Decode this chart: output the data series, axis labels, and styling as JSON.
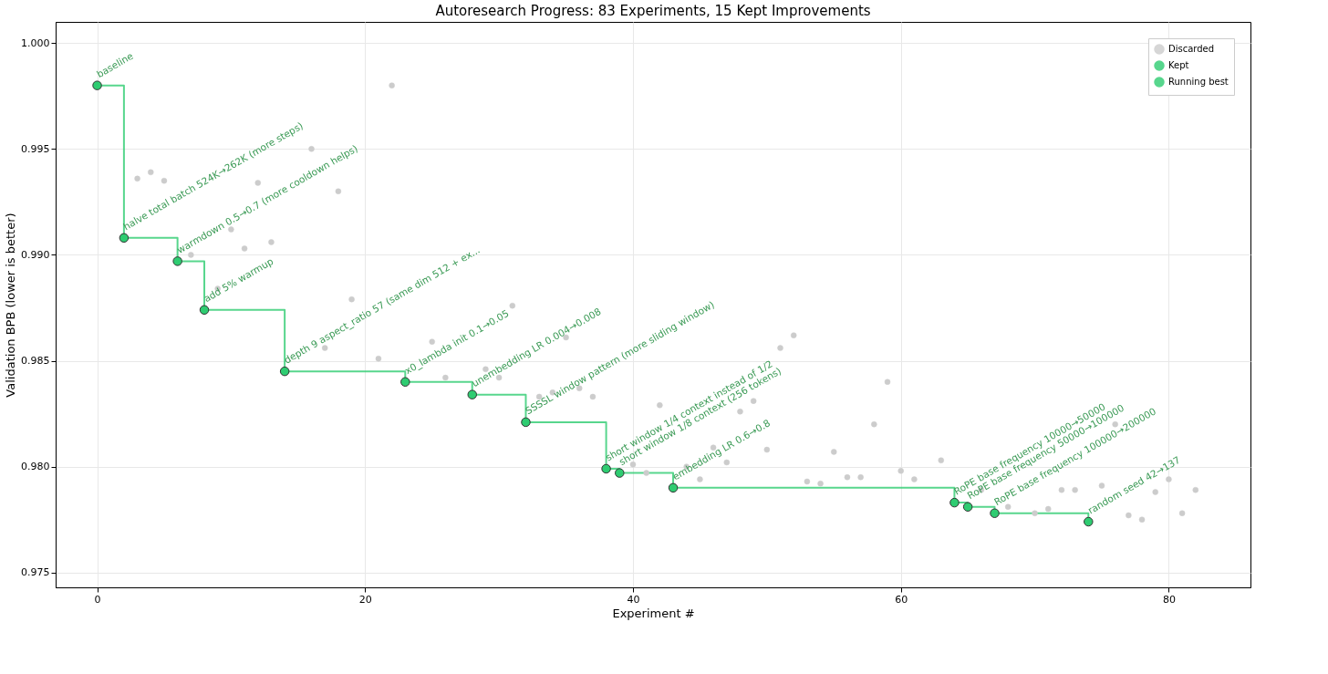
{
  "chart_data": {
    "type": "scatter",
    "title": "Autoresearch Progress: 83 Experiments, 15 Kept Improvements",
    "xlabel": "Experiment #",
    "ylabel": "Validation BPB (lower is better)",
    "xlim": [
      -3.1,
      86.1
    ],
    "xticks": [
      0,
      20,
      40,
      60,
      80
    ],
    "ylim": [
      0.9743,
      1.001
    ],
    "yticks": [
      {
        "value": 0.975,
        "label": "0.975"
      },
      {
        "value": 0.98,
        "label": "0.980"
      },
      {
        "value": 0.985,
        "label": "0.985"
      },
      {
        "value": 0.99,
        "label": "0.990"
      },
      {
        "value": 0.995,
        "label": "0.995"
      },
      {
        "value": 1.0,
        "label": "1.000"
      }
    ],
    "grid": true,
    "legend": "top right",
    "series": [
      {
        "name": "Discarded",
        "marker": "circle",
        "color": "#cccccc",
        "x": [
          3,
          4,
          5,
          7,
          9,
          10,
          11,
          12,
          13,
          16,
          17,
          18,
          19,
          21,
          22,
          25,
          26,
          29,
          30,
          31,
          33,
          34,
          35,
          36,
          37,
          40,
          41,
          42,
          44,
          45,
          46,
          47,
          48,
          49,
          50,
          51,
          52,
          53,
          54,
          55,
          56,
          57,
          58,
          59,
          60,
          61,
          63,
          66,
          68,
          70,
          71,
          72,
          73,
          75,
          76,
          77,
          78,
          79,
          80,
          81,
          82
        ],
        "values": [
          0.9936,
          0.9939,
          0.9935,
          0.99,
          0.9884,
          0.9912,
          0.9903,
          0.9934,
          0.9906,
          0.995,
          0.9856,
          0.993,
          0.9879,
          0.9851,
          0.998,
          0.9859,
          0.9842,
          0.9846,
          0.9842,
          0.9876,
          0.9833,
          0.9835,
          0.9861,
          0.9837,
          0.9833,
          0.9801,
          0.9797,
          0.9829,
          0.98,
          0.9794,
          0.9809,
          0.9802,
          0.9826,
          0.9831,
          0.9808,
          0.9856,
          0.9862,
          0.9793,
          0.9792,
          0.9807,
          0.9795,
          0.9795,
          0.982,
          0.984,
          0.9798,
          0.9794,
          0.9803,
          0.9789,
          0.9781,
          0.9778,
          0.978,
          0.9789,
          0.9789,
          0.9791,
          0.982,
          0.9777,
          0.9775,
          0.9788,
          0.9794,
          0.9778,
          0.9789
        ]
      },
      {
        "name": "Kept",
        "marker": "circle",
        "color": "#2ecc71",
        "x": [
          0,
          2,
          6,
          8,
          14,
          23,
          28,
          32,
          38,
          39,
          43,
          64,
          65,
          67,
          74
        ],
        "values": [
          0.998,
          0.9908,
          0.9897,
          0.9874,
          0.9845,
          0.984,
          0.9834,
          0.9821,
          0.9799,
          0.9797,
          0.979,
          0.9783,
          0.9781,
          0.9778,
          0.9774
        ]
      },
      {
        "name": "Running best",
        "type": "step",
        "color": "#2ecc71",
        "x": [
          0,
          2,
          6,
          8,
          14,
          23,
          28,
          32,
          38,
          39,
          43,
          64,
          65,
          67,
          74
        ],
        "values": [
          0.998,
          0.9908,
          0.9897,
          0.9874,
          0.9845,
          0.984,
          0.9834,
          0.9821,
          0.9799,
          0.9797,
          0.979,
          0.9783,
          0.9781,
          0.9778,
          0.9774
        ]
      }
    ],
    "annotations": [
      {
        "text": "baseline",
        "x": 0,
        "y": 0.998
      },
      {
        "text": "halve total batch 524K→262K (more steps)",
        "x": 2,
        "y": 0.9908
      },
      {
        "text": "warmdown 0.5→0.7 (more cooldown helps)",
        "x": 6,
        "y": 0.9897
      },
      {
        "text": "add 5% warmup",
        "x": 8,
        "y": 0.9874
      },
      {
        "text": "depth 9 aspect_ratio 57 (same dim 512 + ex...",
        "x": 14,
        "y": 0.9845
      },
      {
        "text": "x0_lambda init 0.1→0.05",
        "x": 23,
        "y": 0.984
      },
      {
        "text": "unembedding LR 0.004→0.008",
        "x": 28,
        "y": 0.9834
      },
      {
        "text": "SSSSL window pattern (more sliding window)",
        "x": 32,
        "y": 0.9821
      },
      {
        "text": "short window 1/4 context instead of 1/2",
        "x": 38,
        "y": 0.9799
      },
      {
        "text": "short window 1/8 context (256 tokens)",
        "x": 39,
        "y": 0.9797
      },
      {
        "text": "embedding LR 0.6→0.8",
        "x": 43,
        "y": 0.979
      },
      {
        "text": "RoPE base frequency 10000→50000",
        "x": 64,
        "y": 0.9783
      },
      {
        "text": "RoPE base frequency 50000→100000",
        "x": 65,
        "y": 0.9781
      },
      {
        "text": "RoPE base frequency 100000→200000",
        "x": 67,
        "y": 0.9778
      },
      {
        "text": "random seed 42→137",
        "x": 74,
        "y": 0.9774
      }
    ]
  }
}
